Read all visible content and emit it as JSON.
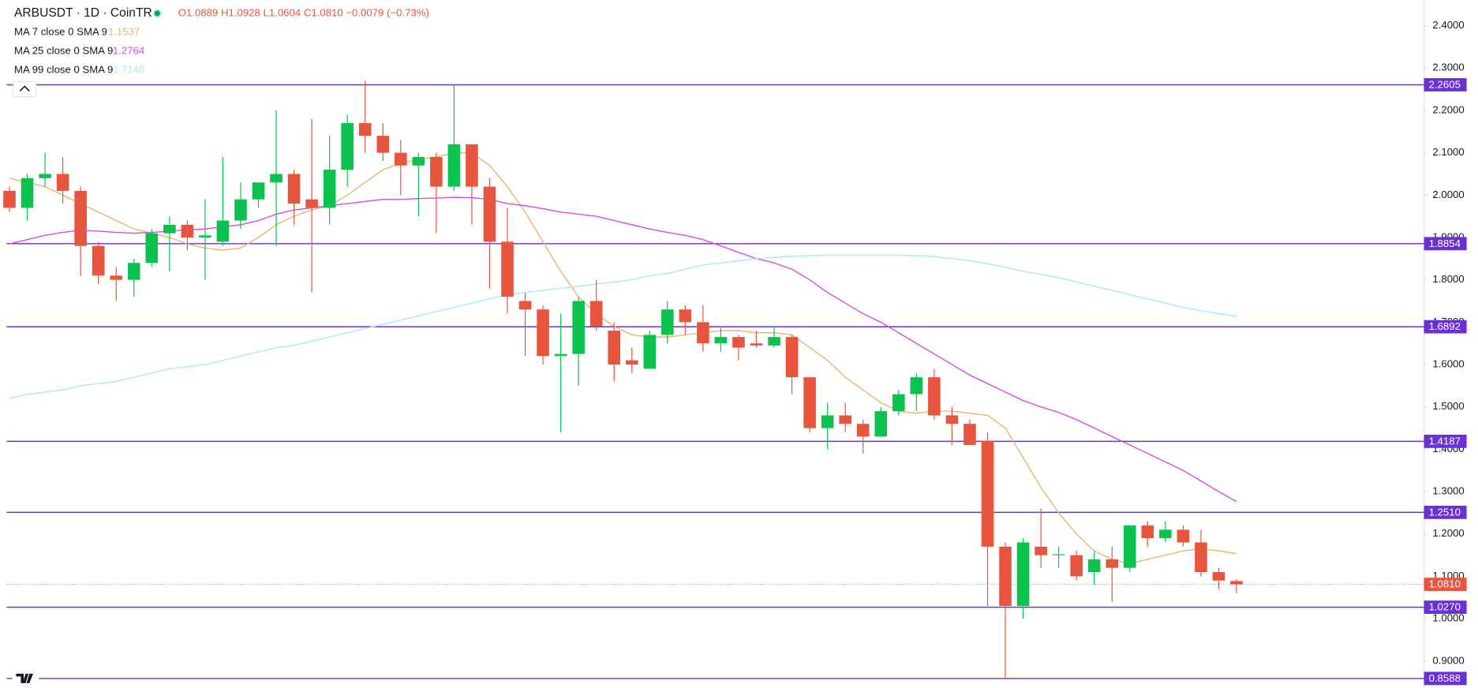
{
  "chart_data": {
    "type": "candlestick",
    "title": "ARBUSDT · 1D · CoinTR",
    "ohlc_text": "O1.0889 H1.0928 L1.0604 C1.0810 −0.0079 (−0.73%)",
    "up_color": "#0cc24f",
    "down_color": "#e8553f",
    "open": [
      2.01,
      1.97,
      2.04,
      2.05,
      2.01,
      1.88,
      1.81,
      1.8,
      1.84,
      1.91,
      1.93,
      1.9,
      1.89,
      1.94,
      1.99,
      2.03,
      2.05,
      1.99,
      1.97,
      2.06,
      2.17,
      2.14,
      2.1,
      2.07,
      2.09,
      2.02,
      2.12,
      2.02,
      1.89,
      1.75,
      1.73,
      1.62,
      1.625,
      1.75,
      1.68,
      1.61,
      1.59,
      1.67,
      1.73,
      1.7,
      1.65,
      1.665,
      1.65,
      1.645,
      1.665,
      1.57,
      1.45,
      1.48,
      1.46,
      1.43,
      1.49,
      1.53,
      1.57,
      1.48,
      1.46,
      1.42,
      1.17,
      1.03,
      1.17,
      1.15,
      1.15,
      1.11,
      1.14,
      1.12,
      1.22,
      1.19,
      1.21,
      1.18,
      1.11,
      1.0889
    ],
    "high": [
      2.02,
      2.05,
      2.1,
      2.09,
      2.02,
      1.89,
      1.83,
      1.85,
      1.92,
      1.95,
      1.94,
      1.99,
      2.09,
      2.03,
      2.03,
      2.2,
      2.06,
      2.18,
      2.14,
      2.19,
      2.27,
      2.17,
      2.13,
      2.1,
      2.1,
      2.26,
      2.12,
      2.04,
      1.97,
      1.77,
      1.74,
      1.72,
      1.76,
      1.8,
      1.7,
      1.64,
      1.68,
      1.75,
      1.74,
      1.74,
      1.69,
      1.67,
      1.68,
      1.69,
      1.67,
      1.57,
      1.51,
      1.51,
      1.47,
      1.5,
      1.54,
      1.58,
      1.59,
      1.5,
      1.47,
      1.44,
      1.18,
      1.19,
      1.26,
      1.17,
      1.16,
      1.16,
      1.17,
      1.22,
      1.23,
      1.23,
      1.22,
      1.21,
      1.12,
      1.0928
    ],
    "low": [
      1.96,
      1.94,
      2.02,
      1.98,
      1.81,
      1.79,
      1.75,
      1.76,
      1.83,
      1.82,
      1.87,
      1.8,
      1.88,
      1.92,
      1.97,
      1.88,
      1.93,
      1.77,
      1.93,
      2.02,
      2.1,
      2.08,
      2.0,
      1.95,
      1.91,
      2.01,
      1.93,
      1.78,
      1.72,
      1.62,
      1.6,
      1.44,
      1.55,
      1.68,
      1.56,
      1.58,
      1.59,
      1.65,
      1.67,
      1.63,
      1.63,
      1.61,
      1.64,
      1.64,
      1.53,
      1.44,
      1.4,
      1.44,
      1.39,
      1.43,
      1.48,
      1.49,
      1.47,
      1.41,
      1.41,
      1.03,
      0.86,
      1.0,
      1.12,
      1.12,
      1.09,
      1.08,
      1.04,
      1.11,
      1.17,
      1.18,
      1.17,
      1.1,
      1.07,
      1.0604
    ],
    "close": [
      1.97,
      2.04,
      2.05,
      2.01,
      1.88,
      1.81,
      1.8,
      1.84,
      1.91,
      1.93,
      1.9,
      1.905,
      1.94,
      1.99,
      2.03,
      2.05,
      1.98,
      1.97,
      2.06,
      2.17,
      2.14,
      2.1,
      2.07,
      2.09,
      2.02,
      2.12,
      2.02,
      1.89,
      1.76,
      1.73,
      1.62,
      1.625,
      1.75,
      1.69,
      1.6,
      1.6,
      1.67,
      1.73,
      1.7,
      1.65,
      1.665,
      1.64,
      1.645,
      1.665,
      1.57,
      1.45,
      1.48,
      1.46,
      1.43,
      1.49,
      1.53,
      1.57,
      1.48,
      1.46,
      1.41,
      1.17,
      1.03,
      1.18,
      1.15,
      1.152,
      1.1,
      1.14,
      1.12,
      1.22,
      1.19,
      1.21,
      1.18,
      1.11,
      1.09,
      1.081
    ],
    "series": [
      {
        "name": "MA 7 close 0 SMA 9",
        "color": "#e6b86f",
        "values": [
          2.04,
          2.03,
          2.02,
          2.0,
          1.98,
          1.96,
          1.94,
          1.92,
          1.91,
          1.9,
          1.885,
          1.875,
          1.87,
          1.875,
          1.9,
          1.93,
          1.95,
          1.965,
          1.975,
          2.0,
          2.03,
          2.06,
          2.075,
          2.085,
          2.09,
          2.1,
          2.1,
          2.07,
          2.02,
          1.96,
          1.89,
          1.82,
          1.76,
          1.72,
          1.69,
          1.67,
          1.665,
          1.665,
          1.67,
          1.675,
          1.68,
          1.68,
          1.675,
          1.675,
          1.67,
          1.64,
          1.61,
          1.57,
          1.54,
          1.51,
          1.49,
          1.485,
          1.49,
          1.49,
          1.485,
          1.48,
          1.45,
          1.38,
          1.31,
          1.25,
          1.2,
          1.16,
          1.14,
          1.13,
          1.14,
          1.15,
          1.16,
          1.165,
          1.16,
          1.1537
        ]
      },
      {
        "name": "MA 25 close 0 SMA 9",
        "color": "#d651d9",
        "values": [
          1.885,
          1.895,
          1.905,
          1.912,
          1.917,
          1.915,
          1.912,
          1.91,
          1.912,
          1.915,
          1.918,
          1.92,
          1.925,
          1.93,
          1.94,
          1.955,
          1.965,
          1.97,
          1.975,
          1.98,
          1.985,
          1.99,
          1.99,
          1.992,
          1.993,
          1.995,
          1.994,
          1.99,
          1.98,
          1.975,
          1.968,
          1.96,
          1.955,
          1.95,
          1.94,
          1.93,
          1.92,
          1.912,
          1.905,
          1.895,
          1.88,
          1.865,
          1.85,
          1.84,
          1.825,
          1.8,
          1.77,
          1.745,
          1.72,
          1.7,
          1.675,
          1.65,
          1.625,
          1.6,
          1.575,
          1.555,
          1.535,
          1.515,
          1.5,
          1.487,
          1.47,
          1.45,
          1.43,
          1.41,
          1.39,
          1.37,
          1.35,
          1.325,
          1.3,
          1.2764
        ]
      },
      {
        "name": "MA 99 close 0 SMA 9",
        "color": "#a9eaf3",
        "values": [
          1.52,
          1.53,
          1.535,
          1.54,
          1.55,
          1.555,
          1.56,
          1.57,
          1.58,
          1.59,
          1.595,
          1.6,
          1.61,
          1.62,
          1.63,
          1.64,
          1.645,
          1.655,
          1.665,
          1.675,
          1.685,
          1.695,
          1.705,
          1.715,
          1.725,
          1.735,
          1.745,
          1.755,
          1.765,
          1.77,
          1.775,
          1.78,
          1.785,
          1.79,
          1.795,
          1.8,
          1.81,
          1.815,
          1.825,
          1.835,
          1.84,
          1.845,
          1.85,
          1.853,
          1.856,
          1.857,
          1.858,
          1.858,
          1.858,
          1.858,
          1.858,
          1.857,
          1.855,
          1.85,
          1.845,
          1.838,
          1.83,
          1.82,
          1.813,
          1.805,
          1.795,
          1.785,
          1.775,
          1.765,
          1.755,
          1.745,
          1.735,
          1.727,
          1.72,
          1.7148
        ]
      }
    ],
    "ylim": [
      0.8366,
      2.4604
    ],
    "yticks": [
      {
        "value": 2.4,
        "label": "2.4000"
      },
      {
        "value": 2.3,
        "label": "2.3000"
      },
      {
        "value": 2.2,
        "label": "2.2000"
      },
      {
        "value": 2.1,
        "label": "2.1000"
      },
      {
        "value": 2.0,
        "label": "2.0000"
      },
      {
        "value": 1.9,
        "label": "1.9000"
      },
      {
        "value": 1.8,
        "label": "1.8000"
      },
      {
        "value": 1.7,
        "label": "1.7000"
      },
      {
        "value": 1.6,
        "label": "1.6000"
      },
      {
        "value": 1.5,
        "label": "1.5000"
      },
      {
        "value": 1.4,
        "label": "1.4000"
      },
      {
        "value": 1.3,
        "label": "1.3000"
      },
      {
        "value": 1.2,
        "label": "1.2000"
      },
      {
        "value": 1.1,
        "label": "1.1000"
      },
      {
        "value": 1.0,
        "label": "1.0000"
      },
      {
        "value": 0.9,
        "label": "0.9000"
      }
    ],
    "hlines_color": "#6b2fd6",
    "hlines": [
      2.2605,
      1.8854,
      1.6892,
      1.4187,
      {
        "value": 1.251,
        "label": "1.2510"
      },
      {
        "value": 1.027,
        "label": "1.0270"
      },
      0.8588
    ],
    "last_price": {
      "value": 1.081,
      "label": "1.0810"
    }
  }
}
